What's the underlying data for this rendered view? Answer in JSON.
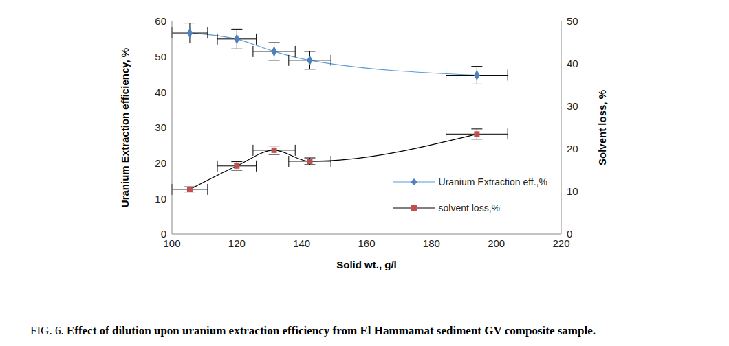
{
  "chart_data": {
    "type": "line",
    "caption_label": "FIG. 6.",
    "caption": "Effect of dilution upon uranium extraction efficiency from El Hammamat sediment GV composite sample.",
    "x_label": "Solid wt., g/l",
    "y_label": "Uranium Extraction efficiency, %",
    "y2_label": "Solvent loss, %",
    "x": [
      105.5,
      120,
      131.5,
      142.5,
      194
    ],
    "xlim": [
      100,
      220
    ],
    "xticks": [
      100,
      120,
      140,
      160,
      180,
      200,
      220
    ],
    "ylim": [
      0,
      60
    ],
    "yticks": [
      0,
      10,
      20,
      30,
      40,
      50,
      60
    ],
    "y2lim": [
      0,
      50
    ],
    "y2ticks": [
      0,
      10,
      20,
      30,
      40,
      50
    ],
    "grid": false,
    "legend": "lower right",
    "series": [
      {
        "name": "Uranium Extraction eff.,%",
        "axis": "y",
        "color": "#5b9bd5",
        "colors": [
          "#4f81bd",
          "#4f81bd",
          "#4f81bd",
          "#4f81bd",
          "#4f81bd"
        ],
        "marker": "diamond",
        "values": [
          56.7,
          55,
          51.5,
          49,
          44.8
        ],
        "y_error": [
          2.8,
          2.8,
          2.5,
          2.5,
          2.5
        ],
        "x_error": [
          5.5,
          6,
          6.5,
          6.5,
          9.5
        ]
      },
      {
        "name": "solvent loss,%",
        "axis": "y2",
        "color": "#000000",
        "colors": [
          "#c0504d",
          "#c0504d",
          "#c0504d",
          "#c0504d",
          "#c0504d"
        ],
        "marker": "square",
        "values": [
          10.5,
          16,
          19.7,
          17.1,
          23.5
        ],
        "y_error": [
          0.6,
          1,
          1,
          0.8,
          1.2
        ],
        "x_error": [
          5.5,
          6,
          6.5,
          6.5,
          9.5
        ]
      }
    ]
  }
}
